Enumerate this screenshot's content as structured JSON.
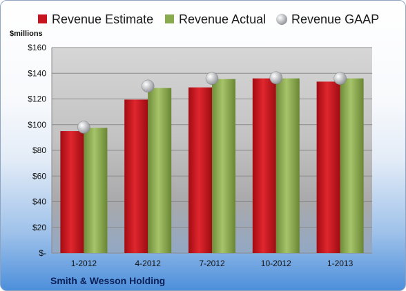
{
  "chart_data": {
    "type": "bar",
    "title": "",
    "ylabel": "$millions",
    "categories": [
      "1-2012",
      "4-2012",
      "7-2012",
      "10-2012",
      "1-2013"
    ],
    "series": [
      {
        "name": "Revenue Estimate",
        "kind": "bar",
        "color": "#c8141e",
        "values": [
          95,
          119.5,
          129,
          136,
          133.5
        ]
      },
      {
        "name": "Revenue Actual",
        "kind": "bar",
        "color": "#8aaa4e",
        "values": [
          97.5,
          128.5,
          135.5,
          136,
          136
        ]
      },
      {
        "name": "Revenue GAAP",
        "kind": "marker",
        "color": "#b5b7ba",
        "values": [
          98,
          130,
          136,
          136.5,
          136
        ]
      }
    ],
    "ylim": [
      0,
      160
    ],
    "yticks": [
      0,
      20,
      40,
      60,
      80,
      100,
      120,
      140,
      160
    ],
    "ytick_labels": [
      "$-",
      "$20",
      "$40",
      "$60",
      "$80",
      "$100",
      "$120",
      "$140",
      "$160"
    ],
    "legend_position": "top",
    "grid": true
  },
  "footer": {
    "company": "Smith & Wesson Holding"
  }
}
